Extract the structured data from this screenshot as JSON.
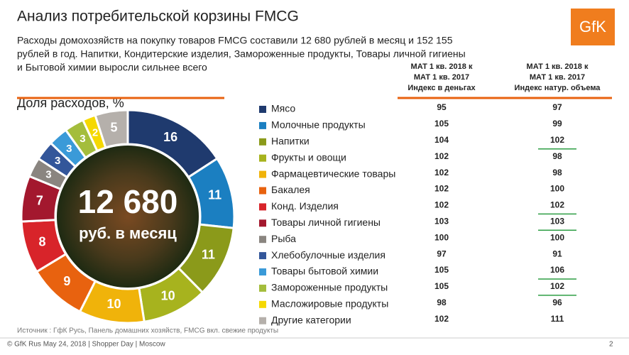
{
  "header": {
    "title": "Анализ потребительской корзины FMCG",
    "logo": "GfK",
    "subtitle": [
      "Расходы домохозяйств на покупку товаров FMCG составили 12 680 рублей в месяц и 152 155",
      "рублей в год. Напитки, Кондитерские изделия, Замороженные продукты, Товары личной гигиены",
      "и Бытовой химии выросли сильнее всего"
    ]
  },
  "chart_data": {
    "type": "donut",
    "title": "Доля расходов, %",
    "center_value": "12 680",
    "center_label": "руб. в месяц",
    "categories": [
      "Мясо",
      "Молочные продукты",
      "Напитки",
      "Фрукты и овощи",
      "Фармацевтические товары",
      "Бакалея",
      "Конд. Изделия",
      "Товары личной гигиены",
      "Рыба",
      "Хлебобулочные изделия",
      "Товары бытовой химии",
      "Замороженные продукты",
      "Масложировые продукты",
      "Другие категории"
    ],
    "values": [
      16,
      11,
      11,
      10,
      10,
      9,
      8,
      7,
      3,
      3,
      3,
      3,
      2,
      5
    ],
    "colors": [
      "#1f3a6e",
      "#1b7fc1",
      "#8b9a1a",
      "#a7b31e",
      "#f0b30a",
      "#e8620f",
      "#d8242a",
      "#a3182e",
      "#8a8580",
      "#33569a",
      "#3a9ad8",
      "#a4bd3c",
      "#f5d800",
      "#b5b0ab"
    ]
  },
  "table": {
    "headers": [
      [
        "МАТ 1 кв. 2018 к",
        "МАТ 1 кв. 2017",
        "Индекс в деньгах"
      ],
      [
        "МАТ 1 кв. 2018 к",
        "МАТ 1 кв. 2017",
        "Индекс натур. объема"
      ]
    ],
    "money": [
      "95",
      "105",
      "104",
      "102",
      "102",
      "102",
      "102",
      "103",
      "100",
      "97",
      "105",
      "105",
      "98",
      "102"
    ],
    "volume": [
      "97",
      "99",
      "102",
      "98",
      "98",
      "100",
      "102",
      "103",
      "100",
      "91",
      "106",
      "102",
      "96",
      "111"
    ],
    "volume_underlined": [
      false,
      false,
      true,
      false,
      false,
      false,
      true,
      true,
      false,
      false,
      true,
      true,
      false,
      false
    ]
  },
  "footer": {
    "source": "Источник : ГфК Русь, Панель домашних хозяйств, FMCG вкл. свежие продукты",
    "copyright": "© GfK Rus May 24, 2018 | Shopper Day | Moscow",
    "page": "2"
  }
}
